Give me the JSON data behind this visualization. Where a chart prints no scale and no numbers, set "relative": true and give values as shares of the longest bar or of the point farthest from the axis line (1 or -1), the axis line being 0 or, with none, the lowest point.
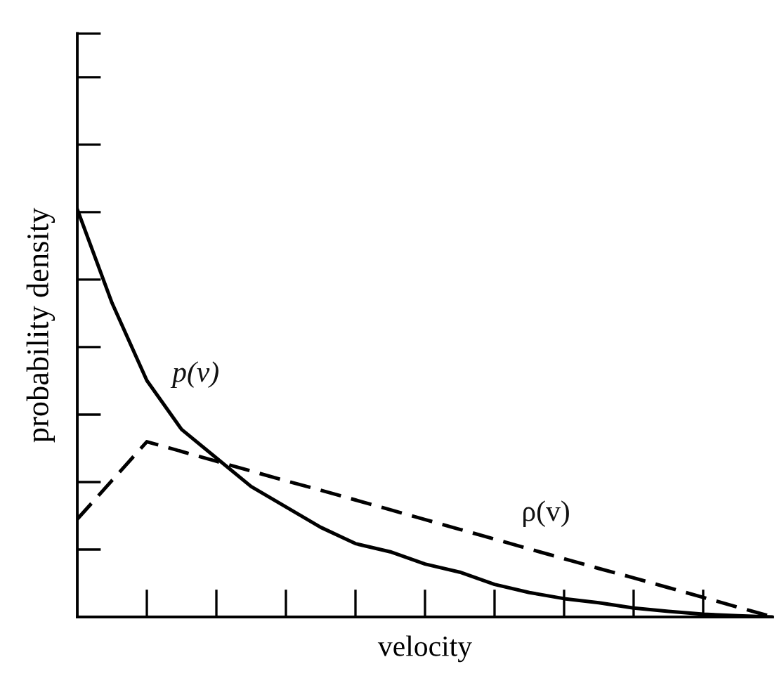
{
  "chart_data": {
    "type": "line",
    "relative": true,
    "xlabel": "velocity",
    "ylabel": "probability density",
    "categories": [
      null,
      null,
      null,
      null,
      null,
      null,
      null,
      null,
      null,
      null,
      null,
      null,
      null,
      null,
      null,
      null,
      null,
      null,
      null,
      null,
      null
    ],
    "series": [
      {
        "name": "p(v)",
        "color": "#000000",
        "line_style": "solid",
        "values": [
          1.0,
          0.77,
          0.58,
          0.46,
          0.39,
          0.32,
          0.27,
          0.22,
          0.18,
          0.16,
          0.13,
          0.11,
          0.08,
          0.06,
          0.045,
          0.035,
          0.022,
          0.014,
          0.007,
          0.003,
          0
        ]
      },
      {
        "name": "ρ(v)",
        "color": "#000000",
        "line_style": "dashed",
        "values": [
          0.24,
          0.335,
          0.43,
          0.406,
          0.382,
          0.358,
          0.334,
          0.311,
          0.287,
          0.263,
          0.239,
          0.215,
          0.191,
          0.167,
          0.143,
          0.119,
          0.096,
          0.072,
          0.048,
          0.024,
          0
        ]
      }
    ],
    "marker": "none"
  }
}
